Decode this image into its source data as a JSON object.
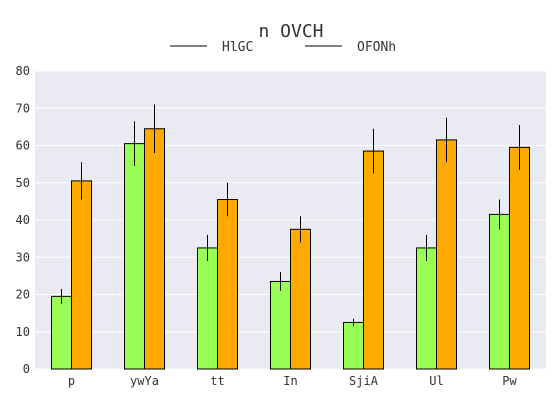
{
  "chart_data": {
    "type": "bar",
    "title": "n OVCH",
    "xlabel": "",
    "ylabel": "",
    "categories": [
      "p",
      "ywYa",
      "tt",
      "In",
      "SjiA",
      "Ul",
      "Pw"
    ],
    "ylim": [
      0,
      80
    ],
    "yticks": [
      0,
      10,
      20,
      30,
      40,
      50,
      60,
      70,
      80
    ],
    "grid": true,
    "legend_position": "top-center",
    "series": [
      {
        "name": "HlGC",
        "color": "#99ff55",
        "values": [
          19.5,
          60.5,
          32.5,
          23.5,
          12.5,
          32.5,
          41.5
        ],
        "errors": [
          2.0,
          6.0,
          3.5,
          2.5,
          1.0,
          3.5,
          4.0
        ]
      },
      {
        "name": "OFONh",
        "color": "#ffaa00",
        "values": [
          50.5,
          64.5,
          45.5,
          37.5,
          58.5,
          61.5,
          59.5
        ],
        "errors": [
          5.0,
          6.5,
          4.5,
          3.5,
          6.0,
          6.0,
          6.0
        ]
      }
    ],
    "colors": {
      "plot_bg": "#eaeaf2",
      "edge": "#000000",
      "text": "#333333"
    }
  }
}
